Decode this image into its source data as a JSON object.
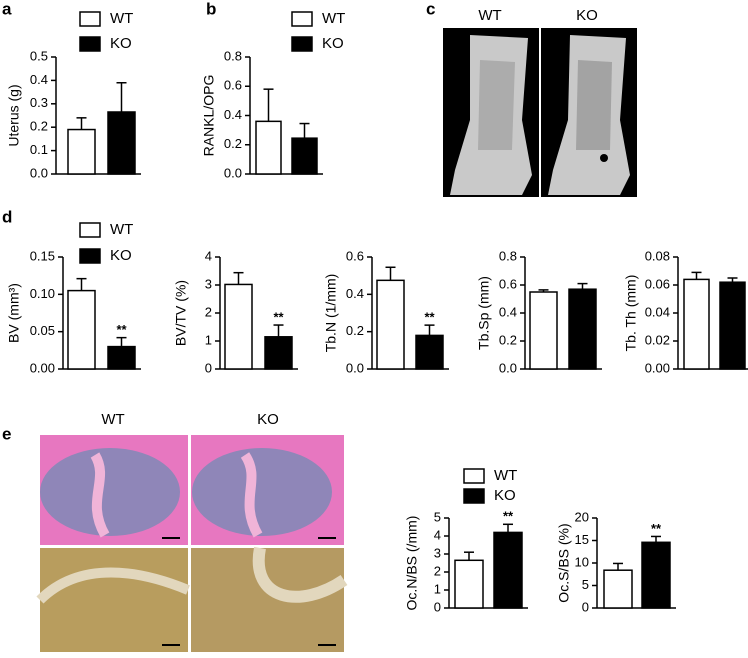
{
  "panel_labels": [
    "a",
    "b",
    "c",
    "d",
    "e"
  ],
  "ct_labels": [
    "WT",
    "KO"
  ],
  "histology_labels": [
    "WT",
    "KO"
  ],
  "chart_data": [
    {
      "type": "bar",
      "ylabel": "Uterus (g)",
      "ylim": [
        0,
        0.5
      ],
      "yticks": [
        {
          "value": 0,
          "label": "0.0"
        },
        0.1,
        0.2,
        0.3,
        0.4,
        0.5
      ],
      "series": [
        {
          "name": "WT",
          "color": "#ffffff",
          "values": [
            0.19
          ],
          "errors": [
            0.05
          ]
        },
        {
          "name": "KO",
          "color": "#000000",
          "values": [
            0.265
          ],
          "errors": [
            0.125
          ]
        }
      ]
    },
    {
      "type": "bar",
      "ylabel": "RANKL/OPG",
      "ylim": [
        0,
        0.8
      ],
      "yticks": [
        {
          "value": 0,
          "label": "0.0"
        },
        0.2,
        0.4,
        0.6,
        0.8
      ],
      "series": [
        {
          "name": "WT",
          "color": "#ffffff",
          "values": [
            0.36
          ],
          "errors": [
            0.22
          ]
        },
        {
          "name": "KO",
          "color": "#000000",
          "values": [
            0.245
          ],
          "errors": [
            0.1
          ]
        }
      ]
    },
    {
      "type": "bar",
      "ylabel": "BV (mm³)",
      "ylim": [
        0,
        0.15
      ],
      "yticks": [
        {
          "value": 0,
          "label": "0.00"
        },
        0.05,
        {
          "value": 0.1,
          "label": "0.10"
        },
        0.15
      ],
      "series": [
        {
          "name": "WT",
          "color": "#ffffff",
          "values": [
            0.105
          ],
          "errors": [
            0.016
          ]
        },
        {
          "name": "KO",
          "color": "#000000",
          "values": [
            0.03
          ],
          "errors": [
            0.012
          ],
          "annotations": [
            "**"
          ]
        }
      ]
    },
    {
      "type": "bar",
      "ylabel": "BV/TV (%)",
      "ylim": [
        0,
        4
      ],
      "yticks": [
        0,
        1,
        2,
        3,
        4
      ],
      "series": [
        {
          "color": "#ffffff",
          "values": [
            3.02
          ],
          "errors": [
            0.42
          ]
        },
        {
          "color": "#000000",
          "values": [
            1.15
          ],
          "errors": [
            0.42
          ],
          "annotations": [
            "**"
          ]
        }
      ]
    },
    {
      "type": "bar",
      "ylabel": "Tb.N (1/mm)",
      "ylim": [
        0,
        0.6
      ],
      "yticks": [
        {
          "value": 0,
          "label": "0.0"
        },
        0.2,
        0.4,
        0.6
      ],
      "series": [
        {
          "color": "#ffffff",
          "values": [
            0.475
          ],
          "errors": [
            0.07
          ]
        },
        {
          "color": "#000000",
          "values": [
            0.18
          ],
          "errors": [
            0.055
          ],
          "annotations": [
            "**"
          ]
        }
      ]
    },
    {
      "type": "bar",
      "ylabel": "Tb.Sp (mm)",
      "ylim": [
        0,
        0.8
      ],
      "yticks": [
        {
          "value": 0,
          "label": "0.0"
        },
        0.2,
        0.4,
        0.6,
        0.8
      ],
      "series": [
        {
          "color": "#ffffff",
          "values": [
            0.55
          ],
          "errors": [
            0.015
          ]
        },
        {
          "color": "#000000",
          "values": [
            0.57
          ],
          "errors": [
            0.04
          ]
        }
      ]
    },
    {
      "type": "bar",
      "ylabel": "Tb. Th (mm)",
      "ylim": [
        0,
        0.08
      ],
      "yticks": [
        {
          "value": 0,
          "label": "0.00"
        },
        0.02,
        0.04,
        0.06,
        0.08
      ],
      "series": [
        {
          "color": "#ffffff",
          "values": [
            0.064
          ],
          "errors": [
            0.005
          ]
        },
        {
          "color": "#000000",
          "values": [
            0.062
          ],
          "errors": [
            0.003
          ]
        }
      ]
    },
    {
      "type": "bar",
      "ylabel": "Oc.N/BS (/mm)",
      "ylim": [
        0,
        5
      ],
      "yticks": [
        0,
        1,
        2,
        3,
        4,
        5
      ],
      "series": [
        {
          "name": "WT",
          "color": "#ffffff",
          "values": [
            2.65
          ],
          "errors": [
            0.45
          ]
        },
        {
          "name": "KO",
          "color": "#000000",
          "values": [
            4.2
          ],
          "errors": [
            0.45
          ],
          "annotations": [
            "**"
          ]
        }
      ]
    },
    {
      "type": "bar",
      "ylabel": "Oc.S/BS (%)",
      "ylim": [
        0,
        20
      ],
      "yticks": [
        0,
        5,
        10,
        15,
        20
      ],
      "series": [
        {
          "color": "#ffffff",
          "values": [
            8.4
          ],
          "errors": [
            1.5
          ]
        },
        {
          "color": "#000000",
          "values": [
            14.6
          ],
          "errors": [
            1.3
          ],
          "annotations": [
            "**"
          ]
        }
      ]
    }
  ]
}
